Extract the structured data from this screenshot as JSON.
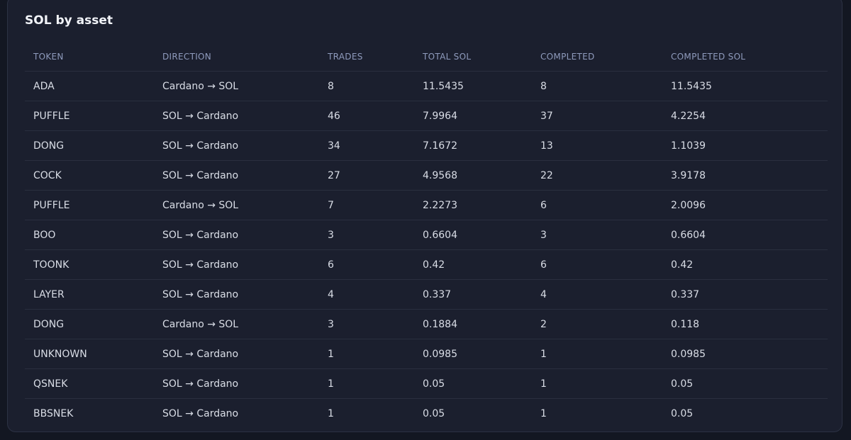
{
  "title": "SOL by asset",
  "table": {
    "headers": [
      "TOKEN",
      "DIRECTION",
      "TRADES",
      "TOTAL SOL",
      "COMPLETED",
      "COMPLETED SOL"
    ],
    "rows": [
      [
        "ADA",
        "Cardano → SOL",
        "8",
        "11.5435",
        "8",
        "11.5435"
      ],
      [
        "PUFFLE",
        "SOL → Cardano",
        "46",
        "7.9964",
        "37",
        "4.2254"
      ],
      [
        "DONG",
        "SOL → Cardano",
        "34",
        "7.1672",
        "13",
        "1.1039"
      ],
      [
        "COCK",
        "SOL → Cardano",
        "27",
        "4.9568",
        "22",
        "3.9178"
      ],
      [
        "PUFFLE",
        "Cardano → SOL",
        "7",
        "2.2273",
        "6",
        "2.0096"
      ],
      [
        "BOO",
        "SOL → Cardano",
        "3",
        "0.6604",
        "3",
        "0.6604"
      ],
      [
        "TOONK",
        "SOL → Cardano",
        "6",
        "0.42",
        "6",
        "0.42"
      ],
      [
        "LAYER",
        "SOL → Cardano",
        "4",
        "0.337",
        "4",
        "0.337"
      ],
      [
        "DONG",
        "Cardano → SOL",
        "3",
        "0.1884",
        "2",
        "0.118"
      ],
      [
        "UNKNOWN",
        "SOL → Cardano",
        "1",
        "0.0985",
        "1",
        "0.0985"
      ],
      [
        "QSNEK",
        "SOL → Cardano",
        "1",
        "0.05",
        "1",
        "0.05"
      ],
      [
        "BBSNEK",
        "SOL → Cardano",
        "1",
        "0.05",
        "1",
        "0.05"
      ]
    ]
  }
}
